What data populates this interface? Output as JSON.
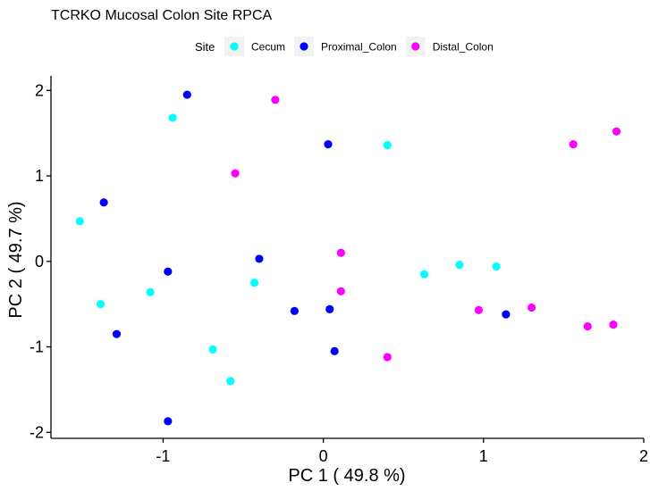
{
  "chart_data": {
    "type": "scatter",
    "title": "TCRKO Mucosal Colon Site RPCA",
    "xlabel": "PC 1 ( 49.8 %)",
    "ylabel": "PC 2 ( 49.7 %)",
    "xlim": [
      -1.7,
      2.0
    ],
    "ylim": [
      -2.07,
      2.17
    ],
    "x_ticks": [
      -1,
      0,
      1,
      2
    ],
    "x_tick_labels": [
      "-1",
      "0",
      "1",
      "2"
    ],
    "y_ticks": [
      -2,
      -1,
      0,
      1,
      2
    ],
    "y_tick_labels": [
      "-2",
      "-1",
      "0",
      "1",
      "2"
    ],
    "grid": false,
    "legend_title": "Site",
    "legend_position": "top",
    "series": [
      {
        "name": "Cecum",
        "color": "#00FFFF",
        "points": [
          {
            "x": -1.52,
            "y": 0.47
          },
          {
            "x": -1.39,
            "y": -0.5
          },
          {
            "x": -1.08,
            "y": -0.36
          },
          {
            "x": -0.94,
            "y": 1.68
          },
          {
            "x": -0.69,
            "y": -1.03
          },
          {
            "x": -0.58,
            "y": -1.4
          },
          {
            "x": -0.43,
            "y": -0.25
          },
          {
            "x": 0.4,
            "y": 1.36
          },
          {
            "x": 0.63,
            "y": -0.15
          },
          {
            "x": 0.85,
            "y": -0.04
          },
          {
            "x": 1.08,
            "y": -0.06
          }
        ]
      },
      {
        "name": "Proximal_Colon",
        "color": "#0000FF",
        "points": [
          {
            "x": -1.37,
            "y": 0.69
          },
          {
            "x": -1.29,
            "y": -0.85
          },
          {
            "x": -0.97,
            "y": -0.12
          },
          {
            "x": -0.97,
            "y": -1.87
          },
          {
            "x": -0.85,
            "y": 1.95
          },
          {
            "x": -0.4,
            "y": 0.03
          },
          {
            "x": -0.18,
            "y": -0.58
          },
          {
            "x": 0.03,
            "y": 1.37
          },
          {
            "x": 0.04,
            "y": -0.56
          },
          {
            "x": 0.07,
            "y": -1.05
          },
          {
            "x": 1.14,
            "y": -0.62
          }
        ]
      },
      {
        "name": "Distal_Colon",
        "color": "#FF00FF",
        "points": [
          {
            "x": -0.3,
            "y": 1.89
          },
          {
            "x": -0.55,
            "y": 1.03
          },
          {
            "x": 0.11,
            "y": 0.1
          },
          {
            "x": 0.11,
            "y": -0.35
          },
          {
            "x": 0.4,
            "y": -1.12
          },
          {
            "x": 0.97,
            "y": -0.57
          },
          {
            "x": 1.3,
            "y": -0.54
          },
          {
            "x": 1.56,
            "y": 1.37
          },
          {
            "x": 1.65,
            "y": -0.76
          },
          {
            "x": 1.81,
            "y": -0.74
          },
          {
            "x": 1.83,
            "y": 1.52
          }
        ]
      }
    ]
  }
}
